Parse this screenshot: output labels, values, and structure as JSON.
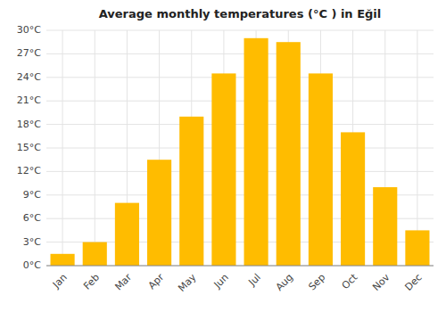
{
  "chart_data": {
    "type": "bar",
    "title": "Average monthly temperatures (°C ) in Eğil",
    "categories": [
      "Jan",
      "Feb",
      "Mar",
      "Apr",
      "May",
      "Jun",
      "Jul",
      "Aug",
      "Sep",
      "Oct",
      "Nov",
      "Dec"
    ],
    "values": [
      1.5,
      3.0,
      8.0,
      13.5,
      19.0,
      24.5,
      29.0,
      28.5,
      24.5,
      17.0,
      10.0,
      4.5
    ],
    "color": "#FFBC00",
    "ylim": [
      0,
      30
    ],
    "yticks": [
      {
        "value": 0,
        "label": "0°C"
      },
      {
        "value": 3,
        "label": "3°C"
      },
      {
        "value": 6,
        "label": "6°C"
      },
      {
        "value": 9,
        "label": "9°C"
      },
      {
        "value": 12,
        "label": "12°C"
      },
      {
        "value": 15,
        "label": "15°C"
      },
      {
        "value": 18,
        "label": "18°C"
      },
      {
        "value": 21,
        "label": "21°C"
      },
      {
        "value": 24,
        "label": "24°C"
      },
      {
        "value": 27,
        "label": "27°C"
      },
      {
        "value": 30,
        "label": "30°C"
      }
    ],
    "grid": true
  }
}
